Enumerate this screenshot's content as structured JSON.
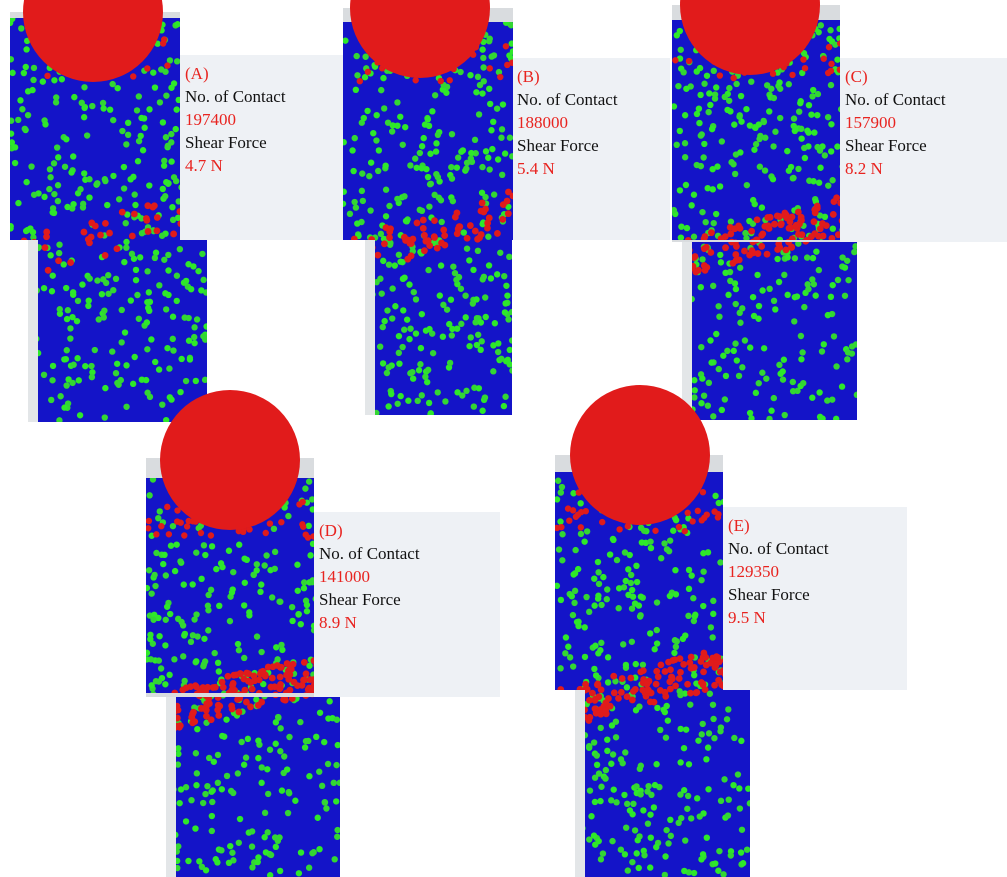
{
  "panels": [
    {
      "label": "(A)",
      "contact_title": "No. of Contact",
      "contacts": "197400",
      "force_title": "Shear Force",
      "force": "4.7 N"
    },
    {
      "label": "(B)",
      "contact_title": "No. of Contact",
      "contacts": "188000",
      "force_title": "Shear Force",
      "force": "5.4 N"
    },
    {
      "label": "(C)",
      "contact_title": "No. of Contact",
      "contacts": "157900",
      "force_title": "Shear Force",
      "force": "8.2 N"
    },
    {
      "label": "(D)",
      "contact_title": "No. of Contact",
      "contacts": "141000",
      "force_title": "Shear Force",
      "force": "8.9 N"
    },
    {
      "label": "(E)",
      "contact_title": "No. of Contact",
      "contacts": "129350",
      "force_title": "Shear Force",
      "force": "9.5 N"
    }
  ]
}
